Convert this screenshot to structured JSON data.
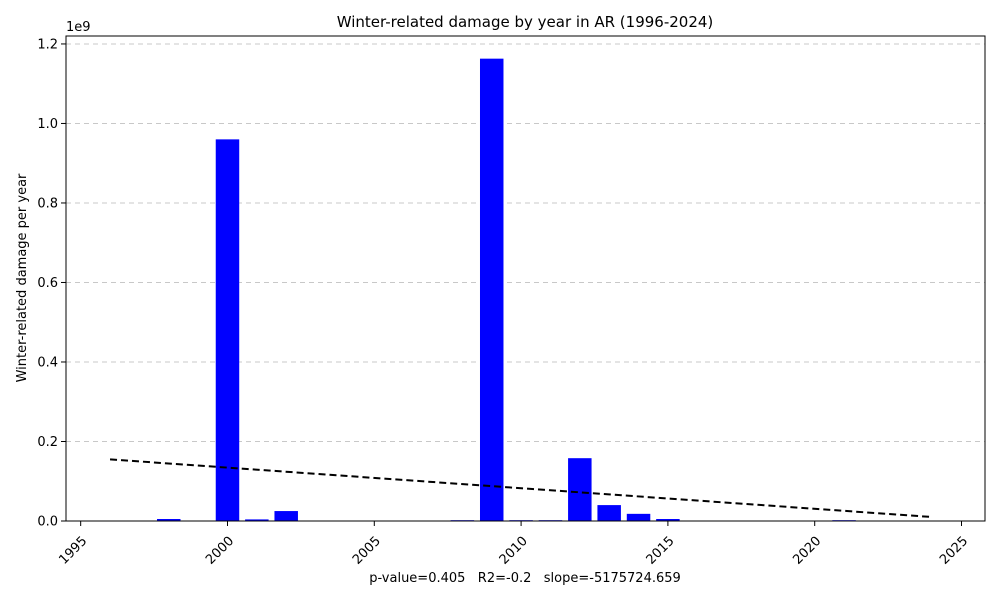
{
  "chart_data": {
    "type": "bar",
    "title": "Winter-related damage by year in AR (1996-2024)",
    "ylabel": "Winter-related damage per year",
    "y_offset_label": "1e9",
    "footer": "p-value=0.405   R2=-0.2   slope=-5175724.659",
    "xlim": [
      1994.5,
      2025.8
    ],
    "ylim": [
      0,
      1.22
    ],
    "x_ticks": [
      1995,
      2000,
      2005,
      2010,
      2015,
      2020,
      2025
    ],
    "y_ticks": [
      0.0,
      0.2,
      0.4,
      0.6,
      0.8,
      1.0,
      1.2
    ],
    "y_tick_labels": [
      "0.0",
      "0.2",
      "0.4",
      "0.6",
      "0.8",
      "1.0",
      "1.2"
    ],
    "grid": "y",
    "bar_color": "#0000ff",
    "trend_color": "#000000",
    "series": [
      {
        "x": [
          1998,
          2000,
          2001,
          2002,
          2008,
          2009,
          2010,
          2011,
          2012,
          2013,
          2014,
          2015,
          2021
        ],
        "values": [
          0.005,
          0.96,
          0.004,
          0.025,
          0.002,
          1.163,
          0.002,
          0.002,
          0.158,
          0.04,
          0.018,
          0.005,
          0.002
        ]
      }
    ],
    "trendline": {
      "x": [
        1996,
        2024
      ],
      "y": [
        0.155,
        0.01
      ]
    }
  }
}
